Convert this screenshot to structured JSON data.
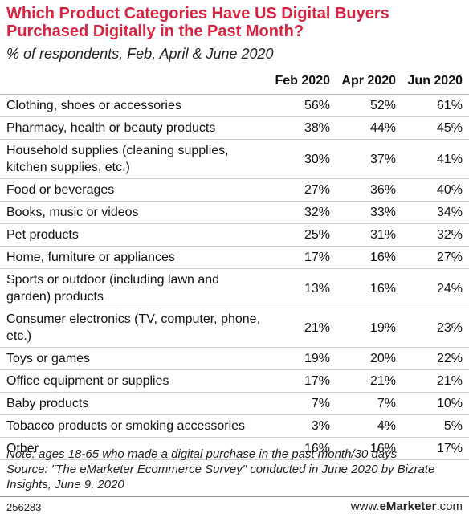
{
  "chart_data": {
    "type": "table",
    "title": "Which Product Categories Have US Digital Buyers Purchased Digitally in the Past Month?",
    "subtitle": "% of respondents, Feb, April & June 2020",
    "columns": [
      "Feb 2020",
      "Apr 2020",
      "Jun 2020"
    ],
    "rows": [
      {
        "category": "Clothing, shoes or accessories",
        "values": [
          "56%",
          "52%",
          "61%"
        ]
      },
      {
        "category": "Pharmacy, health or beauty products",
        "values": [
          "38%",
          "44%",
          "45%"
        ]
      },
      {
        "category": "Household supplies (cleaning supplies, kitchen supplies, etc.)",
        "values": [
          "30%",
          "37%",
          "41%"
        ]
      },
      {
        "category": "Food or beverages",
        "values": [
          "27%",
          "36%",
          "40%"
        ]
      },
      {
        "category": "Books, music or videos",
        "values": [
          "32%",
          "33%",
          "34%"
        ]
      },
      {
        "category": "Pet products",
        "values": [
          "25%",
          "31%",
          "32%"
        ]
      },
      {
        "category": "Home, furniture or appliances",
        "values": [
          "17%",
          "16%",
          "27%"
        ]
      },
      {
        "category": "Sports or outdoor (including lawn and garden) products",
        "values": [
          "13%",
          "16%",
          "24%"
        ]
      },
      {
        "category": "Consumer electronics (TV, computer, phone, etc.)",
        "values": [
          "21%",
          "19%",
          "23%"
        ]
      },
      {
        "category": "Toys or games",
        "values": [
          "19%",
          "20%",
          "22%"
        ]
      },
      {
        "category": "Office equipment or supplies",
        "values": [
          "17%",
          "21%",
          "21%"
        ]
      },
      {
        "category": "Baby products",
        "values": [
          "7%",
          "7%",
          "10%"
        ]
      },
      {
        "category": "Tobacco products or smoking accessories",
        "values": [
          "3%",
          "4%",
          "5%"
        ]
      },
      {
        "category": "Other",
        "values": [
          "16%",
          "16%",
          "17%"
        ]
      }
    ],
    "note": "Note: ages 18-65 who made a digital purchase in the past month/30 days",
    "source": "Source: \"The eMarketer Ecommerce Survey\" conducted in June 2020 by Bizrate Insights, June 9, 2020"
  },
  "footer": {
    "chart_id": "256283",
    "brand_prefix": "www.",
    "brand_name": "eMarketer",
    "brand_suffix": ".com"
  },
  "colors": {
    "title": "#d9223f",
    "rule": "#cfcfcf"
  }
}
